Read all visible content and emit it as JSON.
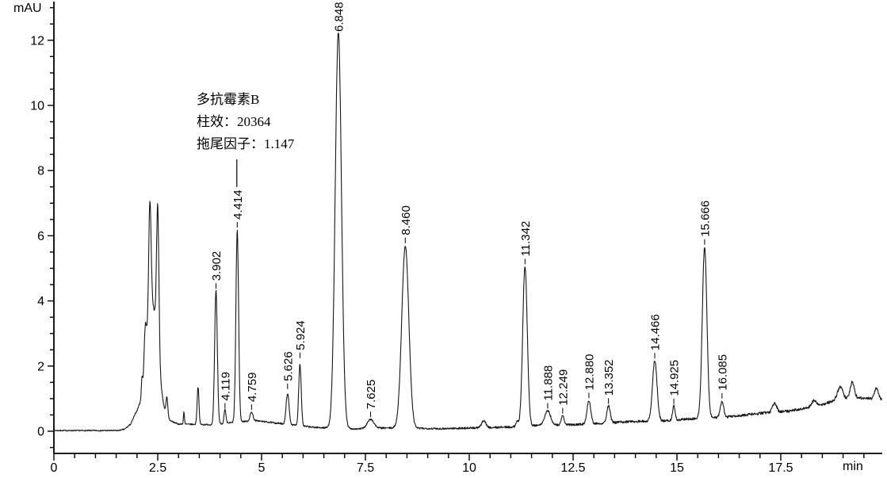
{
  "page": {
    "background_color": "#ffffff",
    "trace_color": "#161616",
    "text_color": "#000000"
  },
  "axes": {
    "y": {
      "unit_label": "mAU",
      "major_ticks": [
        {
          "value": 0,
          "label": "0"
        },
        {
          "value": 2,
          "label": "2"
        },
        {
          "value": 4,
          "label": "4"
        },
        {
          "value": 6,
          "label": "6"
        },
        {
          "value": 8,
          "label": "8"
        },
        {
          "value": 10,
          "label": "10"
        },
        {
          "value": 12,
          "label": "12"
        }
      ],
      "minor_step": 0.5,
      "minor_min": -0.5,
      "minor_max": 13.0
    },
    "x": {
      "unit_label": "min",
      "major_ticks": [
        {
          "value": 0,
          "label": "0"
        },
        {
          "value": 2.5,
          "label": "2.5"
        },
        {
          "value": 5,
          "label": "5"
        },
        {
          "value": 7.5,
          "label": "7.5"
        },
        {
          "value": 10,
          "label": "10"
        },
        {
          "value": 12.5,
          "label": "12.5"
        },
        {
          "value": 15,
          "label": "15"
        },
        {
          "value": 17.5,
          "label": "17.5"
        }
      ],
      "minor_step": 0.5,
      "minor_min": 0,
      "minor_max": 19.5
    }
  },
  "annotation": {
    "lines": [
      "多抗霉素B",
      "柱效：20364",
      "拖尾因子：1.147"
    ],
    "compound": "多抗霉素B",
    "column_efficiency": "20364",
    "tailing_factor": "1.147",
    "attached_peak": "4.414"
  },
  "chart_data": {
    "type": "line",
    "title": "",
    "xlabel": "min",
    "ylabel": "mAU",
    "xlim": [
      0,
      19.93
    ],
    "ylim": [
      -0.7,
      13.2
    ],
    "grid": false,
    "legend": null,
    "labeled_peaks": [
      {
        "rt": 3.902,
        "label": "3.902",
        "apex_mAU": 4.3
      },
      {
        "rt": 4.119,
        "label": "4.119",
        "apex_mAU": 0.62
      },
      {
        "rt": 4.414,
        "label": "4.414",
        "apex_mAU": 6.18,
        "has_annotation_leader": true
      },
      {
        "rt": 4.759,
        "label": "4.759",
        "apex_mAU": 0.58
      },
      {
        "rt": 5.626,
        "label": "5.626",
        "apex_mAU": 1.22
      },
      {
        "rt": 5.924,
        "label": "5.924",
        "apex_mAU": 2.17
      },
      {
        "rt": 6.848,
        "label": "6.848",
        "apex_mAU": 12.25
      },
      {
        "rt": 7.625,
        "label": "7.625",
        "apex_mAU": 0.36
      },
      {
        "rt": 8.46,
        "label": "8.460",
        "apex_mAU": 5.7
      },
      {
        "rt": 11.342,
        "label": "11.342",
        "apex_mAU": 5.05
      },
      {
        "rt": 11.888,
        "label": "11.888",
        "apex_mAU": 0.62
      },
      {
        "rt": 12.249,
        "label": "12.249",
        "apex_mAU": 0.47
      },
      {
        "rt": 12.88,
        "label": "12.880",
        "apex_mAU": 0.94
      },
      {
        "rt": 13.352,
        "label": "13.352",
        "apex_mAU": 0.77
      },
      {
        "rt": 14.466,
        "label": "14.466",
        "apex_mAU": 2.16
      },
      {
        "rt": 14.925,
        "label": "14.925",
        "apex_mAU": 0.76
      },
      {
        "rt": 15.666,
        "label": "15.666",
        "apex_mAU": 5.65
      },
      {
        "rt": 16.085,
        "label": "16.085",
        "apex_mAU": 0.93
      }
    ],
    "unlabeled_peaks": [
      {
        "rt": 2.12,
        "apex_mAU": 1.4
      },
      {
        "rt": 2.31,
        "apex_mAU": 6.5
      },
      {
        "rt": 2.5,
        "apex_mAU": 6.5
      },
      {
        "rt": 2.72,
        "apex_mAU": 1.05
      },
      {
        "rt": 3.13,
        "apex_mAU": 0.58
      },
      {
        "rt": 3.47,
        "apex_mAU": 1.35
      }
    ],
    "trace_model": {
      "baseline_anchors": [
        [
          0,
          0.02
        ],
        [
          1.55,
          0.02
        ],
        [
          1.7,
          0.06
        ],
        [
          1.85,
          0.22
        ],
        [
          1.95,
          0.5
        ],
        [
          2.05,
          0.68
        ],
        [
          2.4,
          0.5
        ],
        [
          3.0,
          0.22
        ],
        [
          3.8,
          0.2
        ],
        [
          4.55,
          0.3
        ],
        [
          4.9,
          0.32
        ],
        [
          5.35,
          0.25
        ],
        [
          6.25,
          0.12
        ],
        [
          7.3,
          0.07
        ],
        [
          8.0,
          0.1
        ],
        [
          9.3,
          0.08
        ],
        [
          10.1,
          0.1
        ],
        [
          11.0,
          0.13
        ],
        [
          11.65,
          0.18
        ],
        [
          12.45,
          0.2
        ],
        [
          13.1,
          0.24
        ],
        [
          13.9,
          0.3
        ],
        [
          14.7,
          0.32
        ],
        [
          15.35,
          0.38
        ],
        [
          16.3,
          0.45
        ],
        [
          17.0,
          0.55
        ],
        [
          17.7,
          0.62
        ],
        [
          18.4,
          0.78
        ],
        [
          18.8,
          0.95
        ],
        [
          19.05,
          1.0
        ],
        [
          19.45,
          1.02
        ],
        [
          19.93,
          0.98
        ]
      ],
      "gaussian_components": [
        [
          2.12,
          0.55,
          0.015
        ],
        [
          2.2,
          1.4,
          0.03
        ],
        [
          2.38,
          3.3,
          0.13
        ],
        [
          2.31,
          3.65,
          0.03
        ],
        [
          2.5,
          4.35,
          0.028
        ],
        [
          2.72,
          0.6,
          0.022
        ],
        [
          3.13,
          0.38,
          0.012
        ],
        [
          3.47,
          1.15,
          0.022
        ],
        [
          3.902,
          4.1,
          0.032
        ],
        [
          4.119,
          0.42,
          0.022
        ],
        [
          4.414,
          5.9,
          0.032
        ],
        [
          4.759,
          0.28,
          0.035
        ],
        [
          5.626,
          0.95,
          0.035
        ],
        [
          5.924,
          1.9,
          0.03
        ],
        [
          6.848,
          12.15,
          0.075
        ],
        [
          7.625,
          0.28,
          0.08
        ],
        [
          8.46,
          5.6,
          0.085
        ],
        [
          10.35,
          0.22,
          0.05
        ],
        [
          11.15,
          0.15,
          0.03
        ],
        [
          11.342,
          4.9,
          0.055
        ],
        [
          11.888,
          0.44,
          0.07
        ],
        [
          12.249,
          0.27,
          0.035
        ],
        [
          12.88,
          0.72,
          0.045
        ],
        [
          13.352,
          0.52,
          0.04
        ],
        [
          14.466,
          1.85,
          0.055
        ],
        [
          14.925,
          0.45,
          0.03
        ],
        [
          15.666,
          5.25,
          0.055
        ],
        [
          16.085,
          0.47,
          0.04
        ],
        [
          17.35,
          0.28,
          0.05
        ],
        [
          18.3,
          0.18,
          0.06
        ],
        [
          18.93,
          0.4,
          0.06
        ],
        [
          19.22,
          0.5,
          0.05
        ],
        [
          19.8,
          0.35,
          0.045
        ]
      ],
      "noise_amp_mAU": 0.02
    }
  }
}
